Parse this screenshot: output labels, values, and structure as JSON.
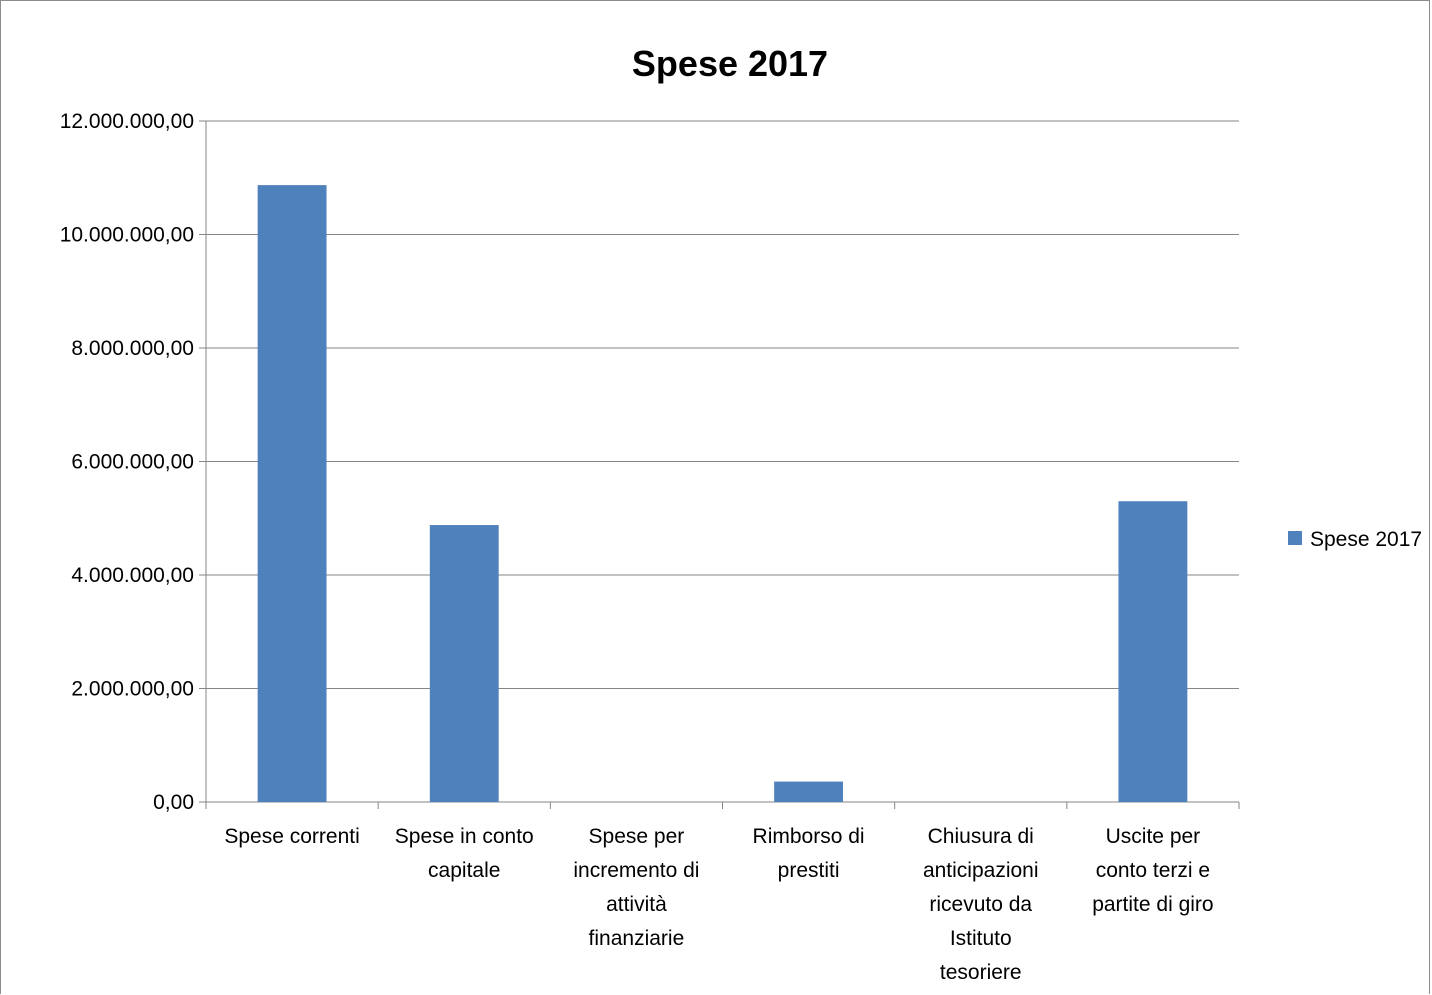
{
  "chart_data": {
    "type": "bar",
    "title": "Spese 2017",
    "xlabel": "",
    "ylabel": "",
    "ylim": [
      0,
      12000000
    ],
    "yticks": [
      0,
      2000000,
      4000000,
      6000000,
      8000000,
      10000000,
      12000000
    ],
    "ytick_labels": [
      "0,00",
      "2.000.000,00",
      "4.000.000,00",
      "6.000.000,00",
      "8.000.000,00",
      "10.000.000,00",
      "12.000.000,00"
    ],
    "categories": [
      [
        "Spese correnti"
      ],
      [
        "Spese in conto",
        "capitale"
      ],
      [
        "Spese per",
        "incremento di",
        "attività",
        "finanziarie"
      ],
      [
        "Rimborso di",
        "prestiti"
      ],
      [
        "Chiusura di",
        "anticipazioni",
        "ricevuto da",
        "Istituto",
        "tesoriere"
      ],
      [
        "Uscite per",
        "conto terzi e",
        "partite di giro"
      ]
    ],
    "series": [
      {
        "name": "Spese 2017",
        "color": "#4f81bd",
        "values": [
          10870000,
          4880000,
          0,
          360000,
          0,
          5300000
        ]
      }
    ],
    "grid": true,
    "legend": "right"
  }
}
